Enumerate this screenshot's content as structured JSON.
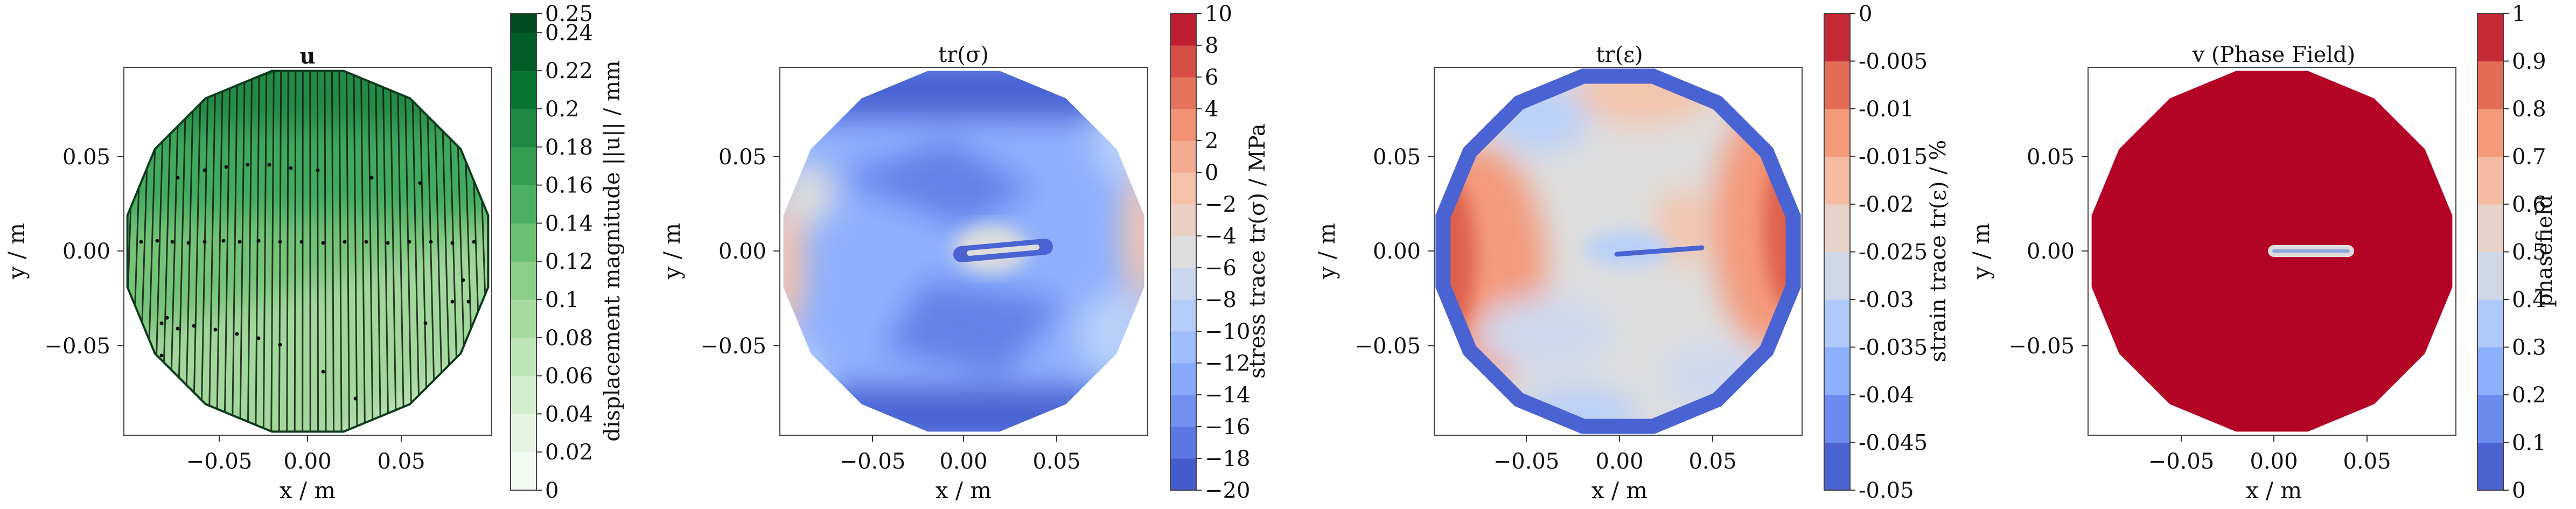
{
  "chart_data": [
    {
      "type": "heatmap",
      "title": "u",
      "xlabel": "x / m",
      "ylabel": "y / m",
      "xticks": [
        "−0.05",
        "0.00",
        "0.05"
      ],
      "yticks": [
        "0.05",
        "0.00",
        "−0.05"
      ],
      "xlim": [
        -0.1,
        0.1
      ],
      "ylim": [
        -0.1,
        0.1
      ],
      "colorbar": {
        "label": "displacement magnitude ||u|| / mm",
        "colormap": "greens",
        "range": [
          0,
          0.25
        ],
        "ticks": [
          "0.25",
          "0.24",
          "0.22",
          "0.2",
          "0.18",
          "0.16",
          "0.14",
          "0.12",
          "0.1",
          "0.08",
          "0.06",
          "0.04",
          "0.02",
          "0"
        ]
      },
      "overlay": "displacement streamlines (black, near-vertical)"
    },
    {
      "type": "heatmap",
      "title": "tr(σ)",
      "xlabel": "x / m",
      "ylabel": "y / m",
      "xticks": [
        "−0.05",
        "0.00",
        "0.05"
      ],
      "yticks": [
        "0.05",
        "0.00",
        "−0.05"
      ],
      "xlim": [
        -0.1,
        0.1
      ],
      "ylim": [
        -0.1,
        0.1
      ],
      "colorbar": {
        "label": "stress trace tr(σ) / MPa",
        "colormap": "coolwarm",
        "range": [
          -20,
          10
        ],
        "ticks": [
          "10",
          "8",
          "6",
          "4",
          "2",
          "0",
          "−2",
          "−4",
          "−6",
          "−8",
          "−10",
          "−12",
          "−14",
          "−16",
          "−18",
          "−20"
        ]
      }
    },
    {
      "type": "heatmap",
      "title": "tr(ε)",
      "xlabel": "x / m",
      "ylabel": "y / m",
      "xticks": [
        "−0.05",
        "0.00",
        "0.05"
      ],
      "yticks": [
        "0.05",
        "0.00",
        "−0.05"
      ],
      "xlim": [
        -0.1,
        0.1
      ],
      "ylim": [
        -0.1,
        0.1
      ],
      "colorbar": {
        "label": "strain trace tr(ε) / %",
        "colormap": "coolwarm",
        "range": [
          -0.05,
          0
        ],
        "ticks": [
          "0",
          "-0.005",
          "-0.01",
          "-0.015",
          "-0.02",
          "-0.025",
          "-0.03",
          "-0.035",
          "-0.04",
          "-0.045",
          "-0.05"
        ]
      }
    },
    {
      "type": "heatmap",
      "title": "v (Phase Field)",
      "xlabel": "x / m",
      "ylabel": "y / m",
      "xticks": [
        "−0.05",
        "0.00",
        "0.05"
      ],
      "yticks": [
        "0.05",
        "0.00",
        "−0.05"
      ],
      "xlim": [
        -0.1,
        0.1
      ],
      "ylim": [
        -0.1,
        0.1
      ],
      "colorbar": {
        "label": "phasefield",
        "colormap": "coolwarm",
        "range": [
          0,
          1
        ],
        "ticks": [
          "1",
          "0.9",
          "0.8",
          "0.7",
          "0.6",
          "0.5",
          "0.4",
          "0.3",
          "0.2",
          "0.1",
          "0"
        ]
      },
      "crack": {
        "x": [
          0.0,
          0.035
        ],
        "y": 0.0
      }
    }
  ],
  "colors": {
    "greens": [
      "#f7fcf5",
      "#e5f5e0",
      "#c7e9c0",
      "#a1d99b",
      "#74c476",
      "#41ab5d",
      "#238b45",
      "#006d2c",
      "#00441b"
    ],
    "coolwarm": [
      "#3b4cc0",
      "#6282ea",
      "#8db0fe",
      "#b8d0f9",
      "#dddddd",
      "#f5c4ac",
      "#f49a7b",
      "#de604d",
      "#b40426"
    ]
  }
}
